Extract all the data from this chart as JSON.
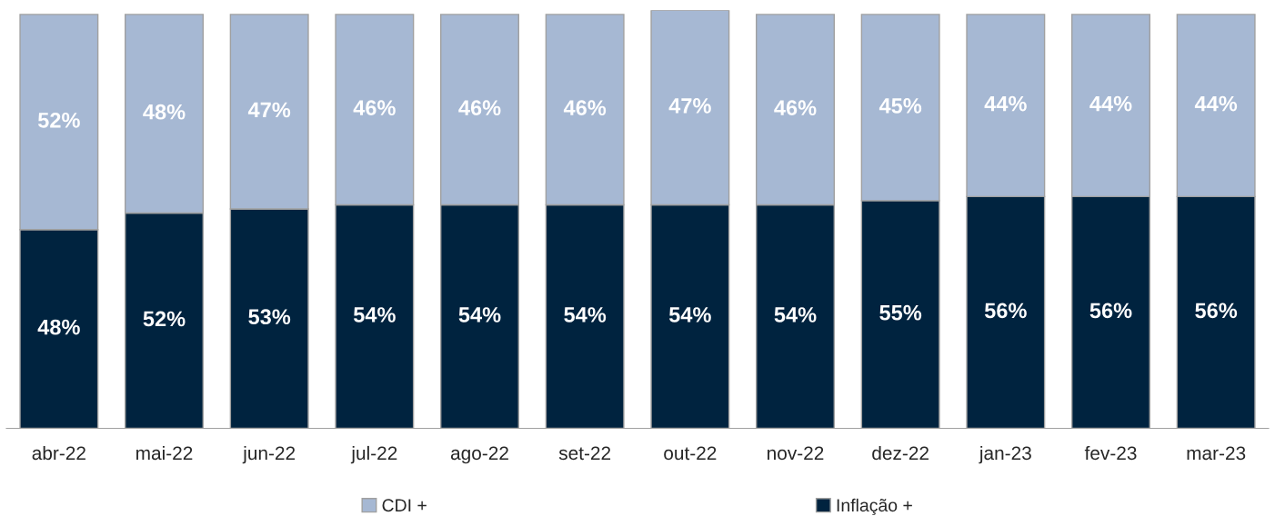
{
  "chart_data": {
    "type": "bar",
    "stacked": true,
    "categories": [
      "abr-22",
      "mai-22",
      "jun-22",
      "jul-22",
      "ago-22",
      "set-22",
      "out-22",
      "nov-22",
      "dez-22",
      "jan-23",
      "fev-23",
      "mar-23"
    ],
    "ylim": [
      0,
      101
    ],
    "series": [
      {
        "name": "Inflação +",
        "color": "#00233f",
        "values": [
          48,
          52,
          53,
          54,
          54,
          54,
          54,
          54,
          55,
          56,
          56,
          56
        ],
        "value_labels": [
          "48%",
          "52%",
          "53%",
          "54%",
          "54%",
          "54%",
          "54%",
          "54%",
          "55%",
          "56%",
          "56%",
          "56%"
        ]
      },
      {
        "name": "CDI +",
        "color": "#a6b8d3",
        "values": [
          52,
          48,
          47,
          46,
          46,
          46,
          47,
          46,
          45,
          44,
          44,
          44
        ],
        "value_labels": [
          "52%",
          "48%",
          "47%",
          "46%",
          "46%",
          "46%",
          "47%",
          "46%",
          "45%",
          "44%",
          "44%",
          "44%"
        ]
      }
    ],
    "legend": "bottom",
    "grid": false
  }
}
